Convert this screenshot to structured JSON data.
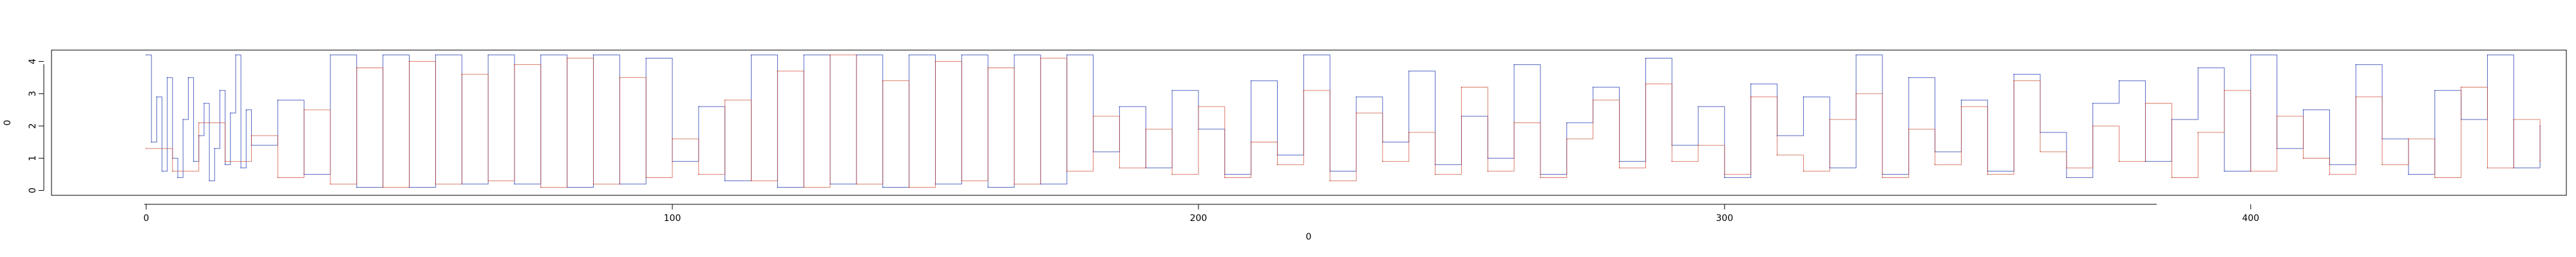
{
  "chart_data": {
    "type": "line",
    "title": "",
    "xlabel": "0",
    "ylabel": "0",
    "xlim": [
      -18,
      460
    ],
    "ylim": [
      -0.15,
      4.35
    ],
    "x_ticks": [
      0,
      100,
      200,
      300,
      400
    ],
    "y_ticks": [
      0,
      1,
      2,
      3,
      4
    ],
    "x_tick_labels": [
      "0",
      "100",
      "200",
      "300",
      "400"
    ],
    "y_tick_labels": [
      "0",
      "1",
      "2",
      "3",
      "4"
    ],
    "grid": false,
    "legend": "none",
    "series": [
      {
        "color": "#3a4fb8",
        "values_note_omitted": null,
        "x": [
          0,
          1,
          2,
          3,
          4,
          5,
          6,
          7,
          8,
          9,
          10,
          11,
          12,
          13,
          14,
          15,
          16,
          17,
          18,
          19,
          20,
          25,
          30,
          35,
          40,
          45,
          50,
          55,
          60,
          65,
          70,
          75,
          80,
          85,
          90,
          95,
          100,
          105,
          110,
          115,
          120,
          125,
          130,
          135,
          140,
          145,
          150,
          155,
          160,
          165,
          170,
          175,
          180,
          185,
          190,
          195,
          200,
          205,
          210,
          215,
          220,
          225,
          230,
          235,
          240,
          245,
          250,
          255,
          260,
          265,
          270,
          275,
          280,
          285,
          290,
          295,
          300,
          305,
          310,
          315,
          320,
          325,
          330,
          335,
          340,
          345,
          350,
          355,
          360,
          365,
          370,
          375,
          380,
          385,
          390,
          395,
          400,
          405,
          410,
          415,
          420,
          425,
          430,
          435,
          440,
          445,
          450,
          455
        ],
        "y": [
          4.2,
          1.5,
          2.9,
          0.6,
          3.5,
          1.0,
          0.4,
          2.2,
          3.5,
          0.9,
          1.7,
          2.7,
          0.3,
          1.3,
          3.1,
          0.8,
          2.4,
          4.2,
          0.7,
          2.5,
          1.4,
          2.8,
          0.5,
          4.2,
          0.1,
          4.2,
          0.1,
          4.2,
          0.2,
          4.2,
          0.2,
          4.2,
          0.1,
          4.2,
          0.2,
          4.1,
          0.9,
          2.6,
          0.3,
          4.2,
          0.1,
          4.2,
          0.2,
          4.2,
          0.1,
          4.2,
          0.2,
          4.2,
          0.1,
          4.2,
          0.2,
          4.2,
          1.2,
          2.6,
          0.7,
          3.1,
          1.9,
          0.5,
          3.4,
          1.1,
          4.2,
          0.6,
          2.9,
          1.5,
          3.7,
          0.8,
          2.3,
          1.0,
          3.9,
          0.5,
          2.1,
          3.2,
          0.9,
          4.1,
          1.4,
          2.6,
          0.4,
          3.3,
          1.7,
          2.9,
          0.7,
          4.2,
          0.5,
          3.5,
          1.2,
          2.8,
          0.6,
          3.6,
          1.8,
          0.4,
          2.7,
          3.4,
          0.9,
          2.2,
          3.8,
          0.6,
          4.2,
          1.3,
          2.5,
          0.8,
          3.9,
          1.6,
          0.5,
          3.1,
          2.2,
          4.2,
          0.7,
          2.0
        ]
      },
      {
        "color": "#c8402a",
        "x": [
          0,
          5,
          10,
          15,
          20,
          25,
          30,
          35,
          40,
          45,
          50,
          55,
          60,
          65,
          70,
          75,
          80,
          85,
          90,
          95,
          100,
          105,
          110,
          115,
          120,
          125,
          130,
          135,
          140,
          145,
          150,
          155,
          160,
          165,
          170,
          175,
          180,
          185,
          190,
          195,
          200,
          205,
          210,
          215,
          220,
          225,
          230,
          235,
          240,
          245,
          250,
          255,
          260,
          265,
          270,
          275,
          280,
          285,
          290,
          295,
          300,
          305,
          310,
          315,
          320,
          325,
          330,
          335,
          340,
          345,
          350,
          355,
          360,
          365,
          370,
          375,
          380,
          385,
          390,
          395,
          400,
          405,
          410,
          415,
          420,
          425,
          430,
          435,
          440,
          445,
          450,
          455
        ],
        "y": [
          1.3,
          0.6,
          2.1,
          0.9,
          1.7,
          0.4,
          2.5,
          0.2,
          3.8,
          0.1,
          4.0,
          0.2,
          3.6,
          0.3,
          3.9,
          0.1,
          4.1,
          0.2,
          3.5,
          0.4,
          1.6,
          0.5,
          2.8,
          0.3,
          3.7,
          0.1,
          4.2,
          0.2,
          3.4,
          0.1,
          4.0,
          0.3,
          3.8,
          0.2,
          4.1,
          0.6,
          2.3,
          0.7,
          1.9,
          0.5,
          2.6,
          0.4,
          1.5,
          0.8,
          3.1,
          0.3,
          2.4,
          0.9,
          1.8,
          0.5,
          3.2,
          0.6,
          2.1,
          0.4,
          1.6,
          2.8,
          0.7,
          3.3,
          0.9,
          1.4,
          0.5,
          2.9,
          1.1,
          0.6,
          2.2,
          3.0,
          0.4,
          1.9,
          0.8,
          2.6,
          0.5,
          3.4,
          1.2,
          0.7,
          2.0,
          0.9,
          2.7,
          0.4,
          1.8,
          3.1,
          0.6,
          2.3,
          1.0,
          0.5,
          2.9,
          0.8,
          1.6,
          0.4,
          3.2,
          0.7,
          2.2,
          0.9
        ]
      }
    ]
  }
}
